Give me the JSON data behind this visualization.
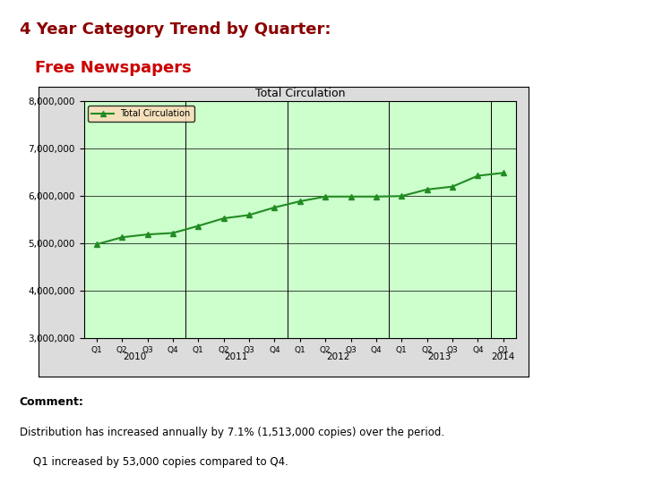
{
  "title_line1": "4 Year Category Trend by Quarter:",
  "title_line2": "Free Newspapers",
  "title_color1": "#8B0000",
  "title_color2": "#CC0000",
  "chart_title": "Total Circulation",
  "legend_label": "Total Circulation",
  "x_labels": [
    "Q1",
    "Q2",
    "Q3",
    "Q4",
    "Q1",
    "Q2",
    "Q3",
    "Q4",
    "Q1",
    "Q2",
    "Q3",
    "Q4",
    "Q1",
    "Q2",
    "Q3",
    "Q4",
    "Q1"
  ],
  "values": [
    4980000,
    5130000,
    5190000,
    5220000,
    5370000,
    5530000,
    5600000,
    5760000,
    5890000,
    5990000,
    5990000,
    5990000,
    6000000,
    6140000,
    6200000,
    6430000,
    6490000
  ],
  "ylim": [
    3000000,
    8000000
  ],
  "yticks": [
    3000000,
    4000000,
    5000000,
    6000000,
    7000000,
    8000000
  ],
  "line_color": "#228B22",
  "marker_color": "#228B22",
  "plot_bg": "#CCFFCC",
  "dividers": [
    3.5,
    7.5,
    11.5,
    15.5
  ],
  "year_label_positions": [
    [
      1.5,
      "2010"
    ],
    [
      5.5,
      "2011"
    ],
    [
      9.5,
      "2012"
    ],
    [
      13.5,
      "2013"
    ],
    [
      16.0,
      "2014"
    ]
  ],
  "comment_bold": "Comment:",
  "comment_text1": "Distribution has increased annually by 7.1% (1,513,000 copies) over the period.",
  "comment_text2": "    Q1 increased by 53,000 copies compared to Q4.",
  "background_color": "#FFFFFF",
  "legend_bg": "#FFDAB9"
}
